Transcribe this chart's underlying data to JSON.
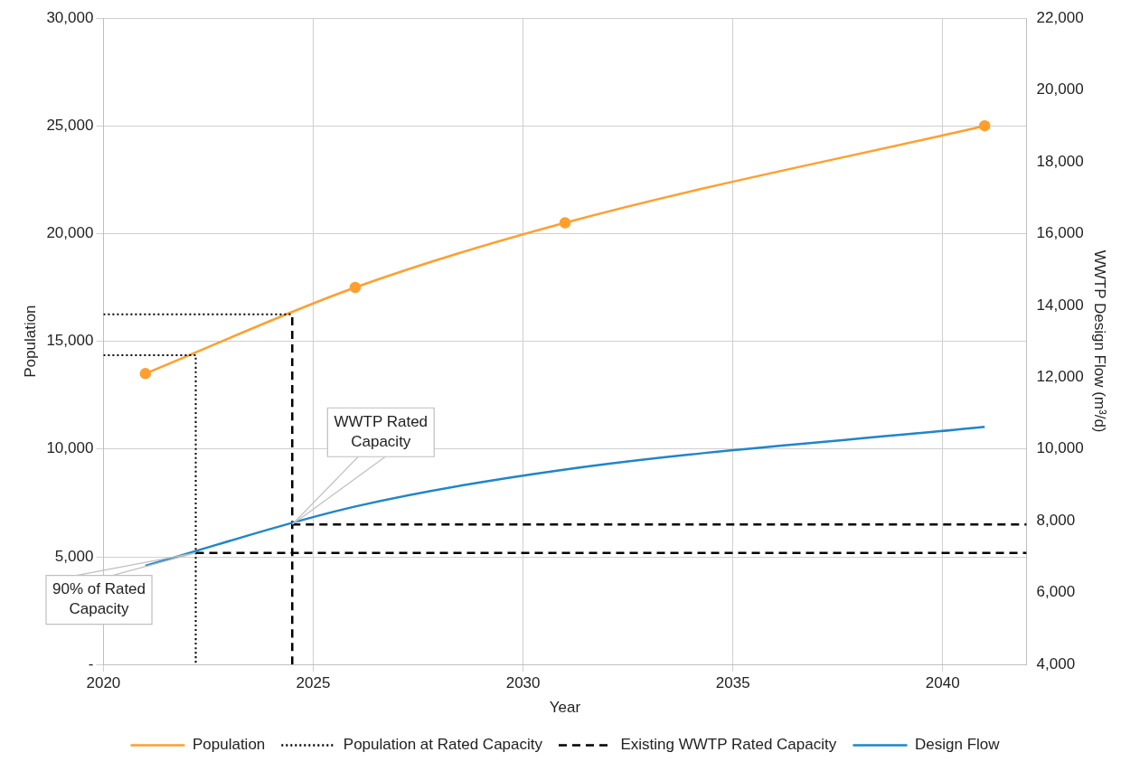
{
  "chart_data": {
    "type": "line",
    "xlabel": "Year",
    "ylabel": "Population",
    "y2label": "WWTP Design Flow (m³/d)",
    "xlim": [
      2020,
      2042
    ],
    "xticks": [
      2020,
      2025,
      2030,
      2035,
      2040
    ],
    "ylim": [
      0,
      30000
    ],
    "yticks": [
      {
        "value": 0,
        "label": "-"
      },
      {
        "value": 5000,
        "label": "5,000"
      },
      {
        "value": 10000,
        "label": "10,000"
      },
      {
        "value": 15000,
        "label": "15,000"
      },
      {
        "value": 20000,
        "label": "20,000"
      },
      {
        "value": 25000,
        "label": "25,000"
      },
      {
        "value": 30000,
        "label": "30,000"
      }
    ],
    "y2lim": [
      4000,
      22000
    ],
    "y2ticks": [
      {
        "value": 4000,
        "label": "4,000"
      },
      {
        "value": 6000,
        "label": "6,000"
      },
      {
        "value": 8000,
        "label": "8,000"
      },
      {
        "value": 10000,
        "label": "10,000"
      },
      {
        "value": 12000,
        "label": "12,000"
      },
      {
        "value": 14000,
        "label": "14,000"
      },
      {
        "value": 16000,
        "label": "16,000"
      },
      {
        "value": 18000,
        "label": "18,000"
      },
      {
        "value": 20000,
        "label": "20,000"
      },
      {
        "value": 22000,
        "label": "22,000"
      }
    ],
    "grid": true,
    "legend": "bottom",
    "series": [
      {
        "name": "Population",
        "color": "#ff9f2e",
        "x": [
          2021,
          2026,
          2031,
          2041
        ],
        "values": [
          13500,
          17500,
          20500,
          25000
        ],
        "marker": "circle",
        "line_style": "solid"
      },
      {
        "name": "Population at Rated Capacity",
        "color": "#000000",
        "x": [
          2020,
          2024.5,
          null,
          2020,
          2022.2,
          2022.2
        ],
        "values": [
          16250,
          16250,
          null,
          14350,
          14350,
          0
        ],
        "marker": "none",
        "line_style": "dotted"
      },
      {
        "name": "Existing WWTP Rated Capacity",
        "color": "#000000",
        "axis": "y2",
        "x": [
          2024.5,
          2024.5,
          null,
          2024.5,
          2042,
          null,
          2022.2,
          2042
        ],
        "values": [
          4000,
          13750,
          null,
          7900,
          7900,
          null,
          7110,
          7110
        ],
        "marker": "none",
        "line_style": "dashed"
      },
      {
        "name": "Design Flow",
        "color": "#1f86c8",
        "axis": "y2",
        "x": [
          2021,
          2026,
          2031,
          2041
        ],
        "values": [
          6750,
          8400,
          9430,
          10620
        ],
        "marker": "none",
        "line_style": "solid"
      }
    ],
    "annotations": [
      "WWTP Rated Capacity",
      "90% of Rated Capacity"
    ]
  }
}
